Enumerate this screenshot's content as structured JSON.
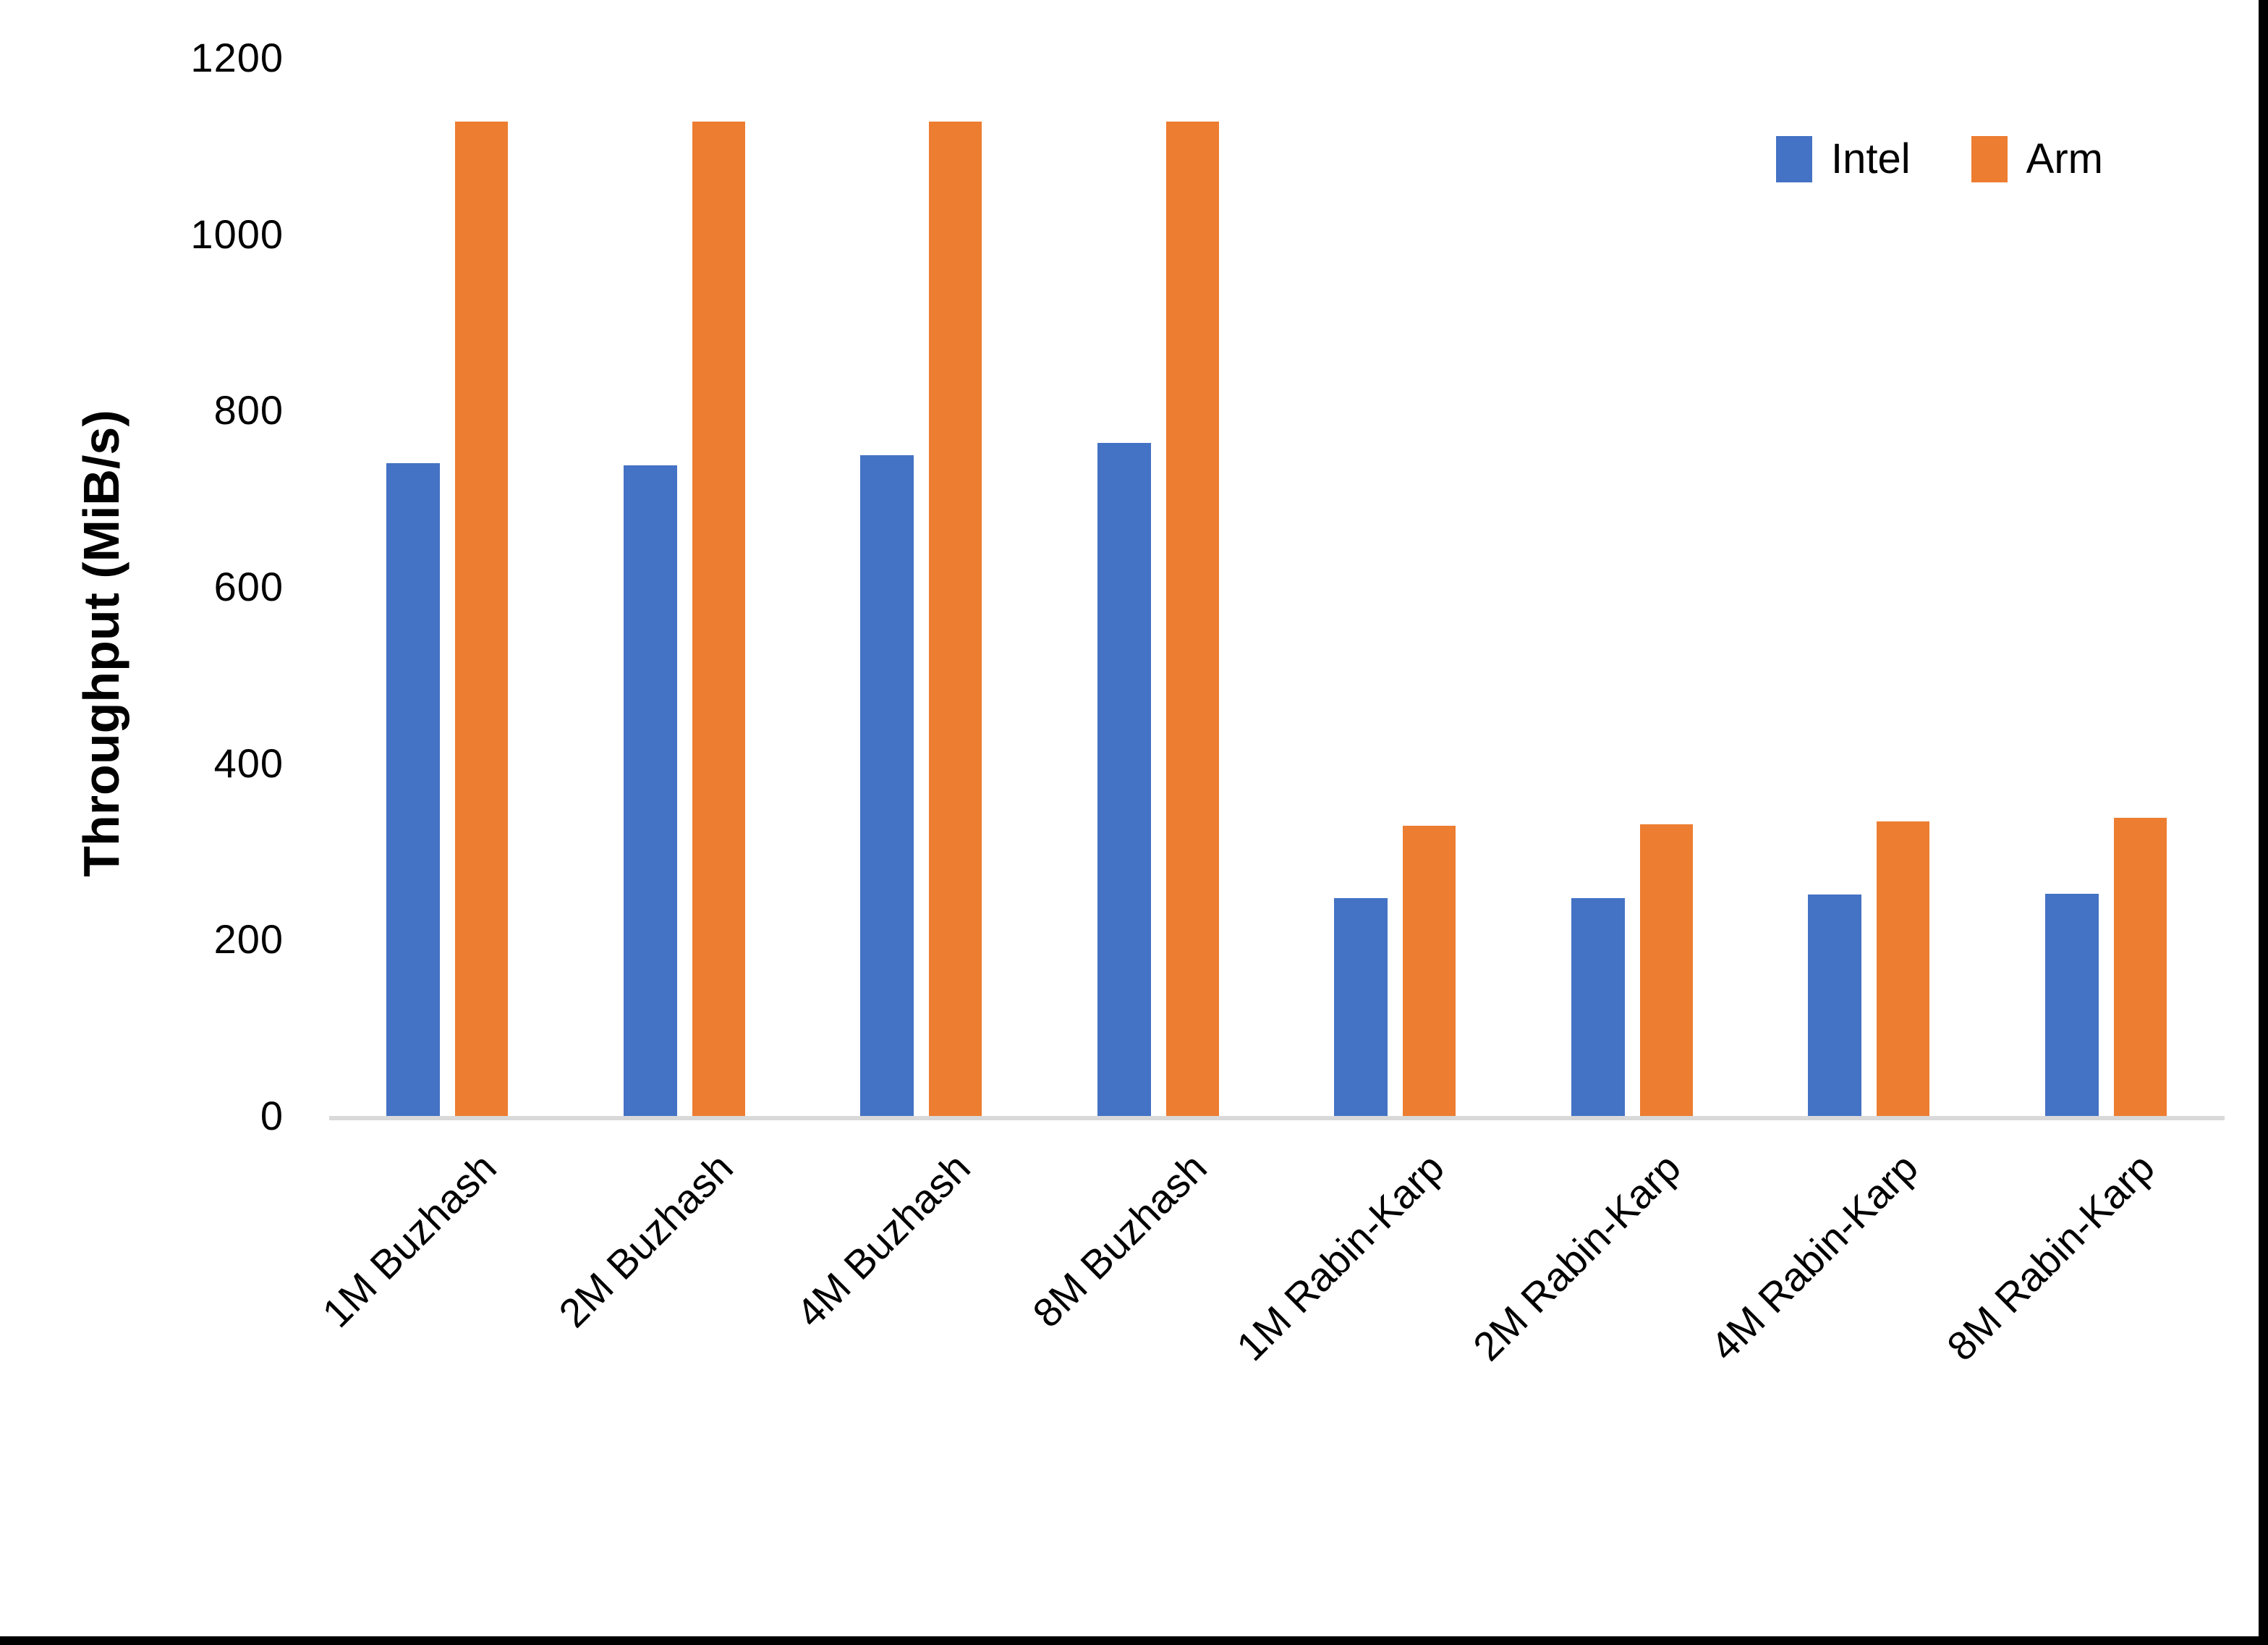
{
  "chart_data": {
    "type": "bar",
    "title": "",
    "xlabel": "",
    "ylabel": "Throughput (MiB/s)",
    "ylim": [
      0,
      1200
    ],
    "yticks": [
      0,
      200,
      400,
      600,
      800,
      1000,
      1200
    ],
    "grid": false,
    "legend_position": "top-right",
    "categories": [
      "1M Buzhash",
      "2M Buzhash",
      "4M Buzhash",
      "8M Buzhash",
      "1M Rabin-Karp",
      "2M Rabin-Karp",
      "4M Rabin-Karp",
      "8M Rabin-Karp"
    ],
    "series": [
      {
        "name": "Intel",
        "color": "#4472C4",
        "values": [
          740,
          738,
          749,
          763,
          247,
          247,
          251,
          252
        ]
      },
      {
        "name": "Arm",
        "color": "#ED7D31",
        "values": [
          1128,
          1128,
          1128,
          1128,
          329,
          331,
          334,
          338
        ]
      }
    ]
  },
  "colors": {
    "background": "#FFFFFF",
    "axis_line": "#D9D9D9",
    "text": "#000000",
    "screen_border": "#000000"
  }
}
